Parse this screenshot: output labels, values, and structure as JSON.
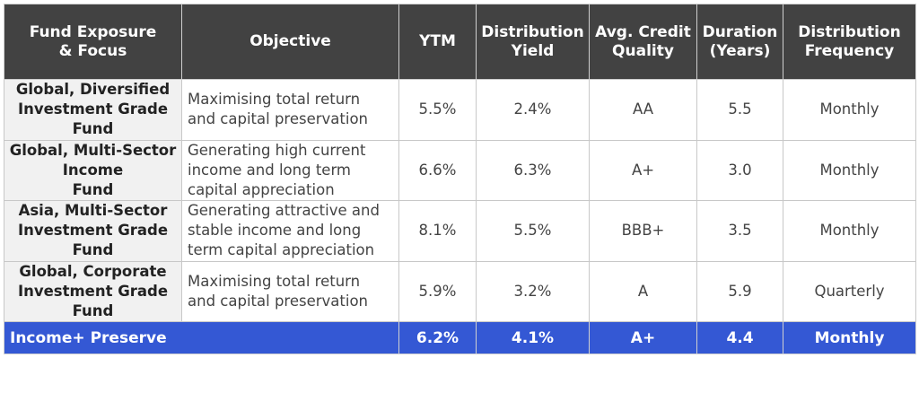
{
  "headers": {
    "fund": [
      "Fund  Exposure",
      "& Focus"
    ],
    "objective": [
      "Objective"
    ],
    "ytm": [
      "YTM"
    ],
    "dist_yield": [
      "Distribution",
      "Yield"
    ],
    "credit": [
      "Avg. Credit",
      "Quality"
    ],
    "duration": [
      "Duration",
      "(Years)"
    ],
    "frequency": [
      "Distribution",
      "Frequency"
    ]
  },
  "rows": [
    {
      "fund": [
        "Global, Diversified",
        "Investment Grade",
        "Fund"
      ],
      "objective": [
        "Maximising total return",
        "and capital preservation"
      ],
      "ytm": "5.5%",
      "dist_yield": "2.4%",
      "credit": "AA",
      "duration": "5.5",
      "frequency": "Monthly"
    },
    {
      "fund": [
        "Global, Multi-Sector",
        "Income",
        "Fund"
      ],
      "objective": [
        "Generating high current",
        "income and long term",
        "capital appreciation"
      ],
      "ytm": "6.6%",
      "dist_yield": "6.3%",
      "credit": "A+",
      "duration": "3.0",
      "frequency": "Monthly"
    },
    {
      "fund": [
        "Asia, Multi-Sector",
        "Investment Grade",
        "Fund"
      ],
      "objective": [
        "Generating attractive and",
        "stable income and long",
        "term capital appreciation"
      ],
      "ytm": "8.1%",
      "dist_yield": "5.5%",
      "credit": "BBB+",
      "duration": "3.5",
      "frequency": "Monthly"
    },
    {
      "fund": [
        "Global, Corporate",
        "Investment Grade",
        "Fund"
      ],
      "objective": [
        "Maximising total return",
        "and capital preservation"
      ],
      "ytm": "5.9%",
      "dist_yield": "3.2%",
      "credit": "A",
      "duration": "5.9",
      "frequency": "Quarterly"
    }
  ],
  "summary": {
    "name": "Income+ Preserve",
    "ytm": "6.2%",
    "dist_yield": "4.1%",
    "credit": "A+",
    "duration": "4.4",
    "frequency": "Monthly"
  },
  "colors": {
    "header_bg": "#424242",
    "summary_bg": "#3458d4",
    "fund_cell_bg": "#f1f1f1"
  }
}
